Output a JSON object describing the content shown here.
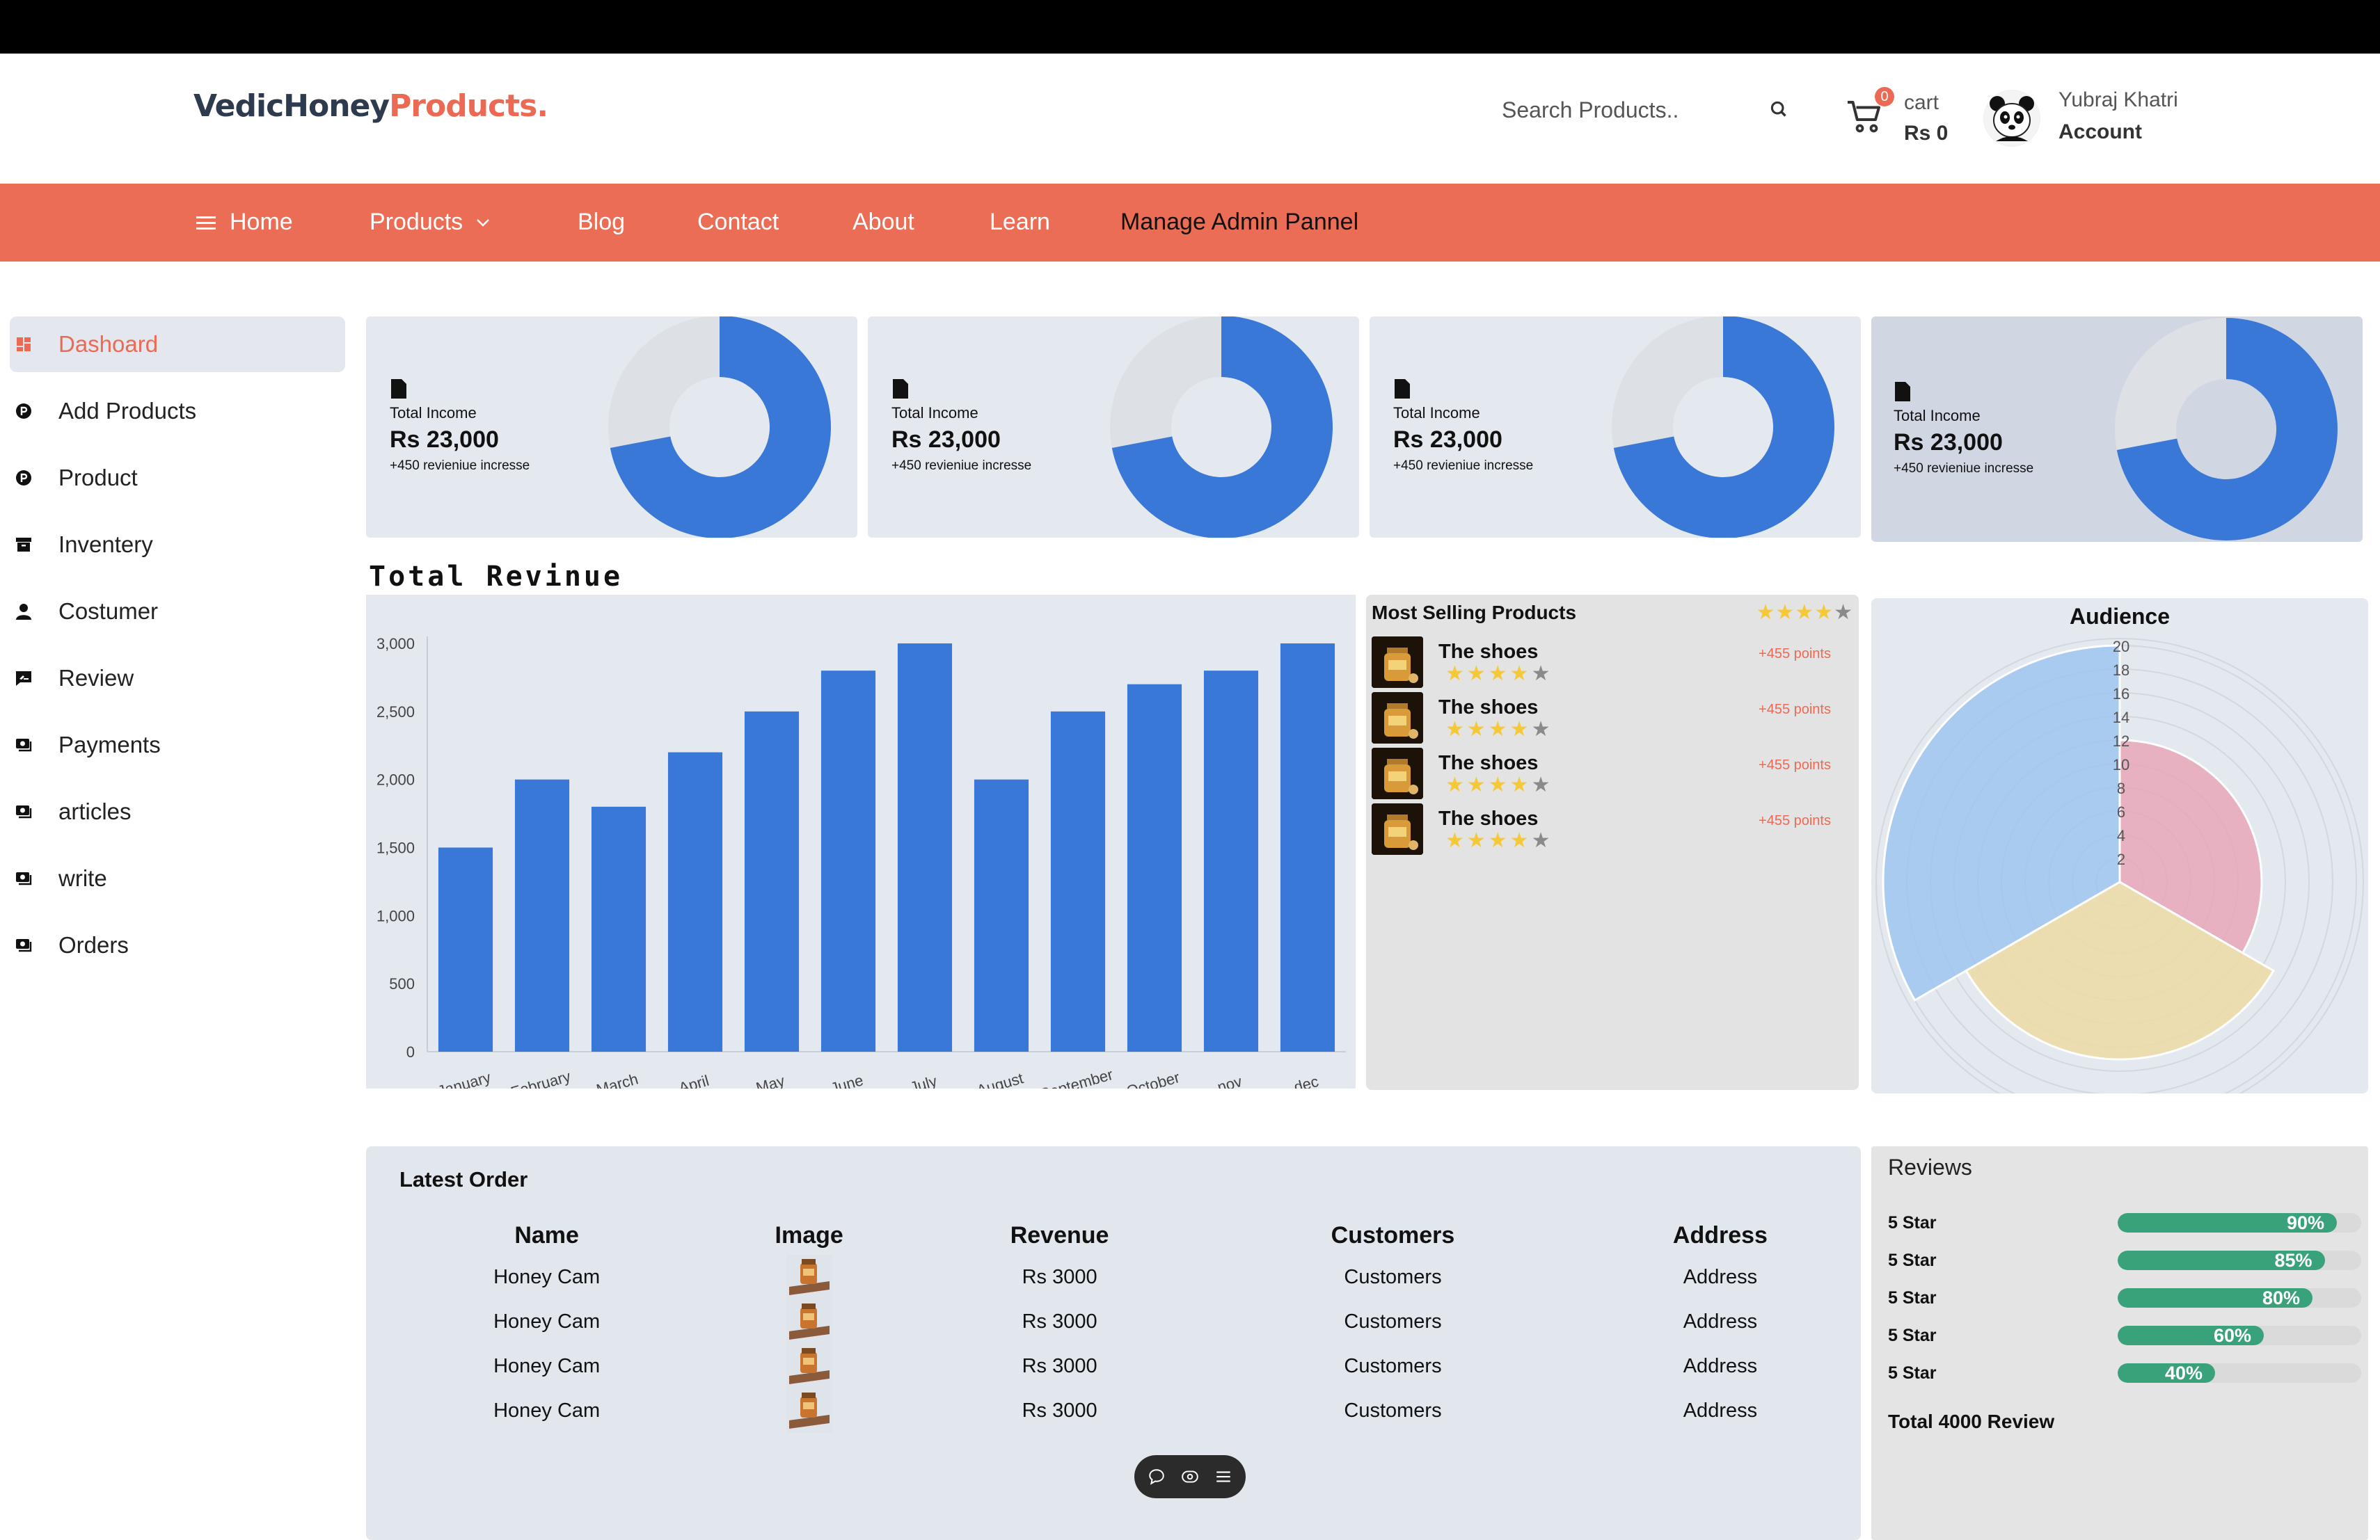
{
  "brand": {
    "part1": "VedicHoney",
    "part2": "Products.",
    "color1": "#2e3a4e",
    "color2": "#ec6a54"
  },
  "search": {
    "placeholder": "Search Products.."
  },
  "cart": {
    "badge": "0",
    "label": "cart",
    "amount": "Rs 0"
  },
  "account": {
    "name": "Yubraj Khatri",
    "label": "Account"
  },
  "nav": {
    "bg": "#ec6d55",
    "items": [
      "Home",
      "Products",
      "Blog",
      "Contact",
      "About",
      "Learn",
      "Manage Admin Pannel"
    ]
  },
  "sidebar": {
    "items": [
      {
        "label": "Dashoard",
        "icon": "dashboard-icon",
        "active": true
      },
      {
        "label": "Add Products",
        "icon": "product-hunt-icon"
      },
      {
        "label": "Product",
        "icon": "product-hunt-icon"
      },
      {
        "label": "Inventery",
        "icon": "archive-box-icon"
      },
      {
        "label": "Costumer",
        "icon": "user-icon"
      },
      {
        "label": "Review",
        "icon": "review-icon"
      },
      {
        "label": "Payments",
        "icon": "money-bill-icon"
      },
      {
        "label": "articles",
        "icon": "money-bill-icon"
      },
      {
        "label": "write",
        "icon": "money-bill-icon"
      },
      {
        "label": "Orders",
        "icon": "money-bill-icon"
      }
    ]
  },
  "cards": [
    {
      "title": "Total Income",
      "value": "Rs 23,000",
      "increase": "+450 revieniue incresse",
      "percent": 0.72
    },
    {
      "title": "Total Income",
      "value": "Rs 23,000",
      "increase": "+450 revieniue incresse",
      "percent": 0.72
    },
    {
      "title": "Total Income",
      "value": "Rs 23,000",
      "increase": "+450 revieniue incresse",
      "percent": 0.72
    },
    {
      "title": "Total Income",
      "value": "Rs 23,000",
      "increase": "+450 revieniue incresse",
      "percent": 0.72
    }
  ],
  "revenue": {
    "title": "Total Revinue"
  },
  "chart_data": [
    {
      "type": "bar",
      "title": "Total Revinue",
      "categories": [
        "January",
        "February",
        "March",
        "April",
        "May",
        "June",
        "July",
        "August",
        "September",
        "October",
        "nov",
        "dec"
      ],
      "values": [
        1500,
        2000,
        1800,
        2200,
        2500,
        2800,
        3000,
        2000,
        2500,
        2700,
        2800,
        3000
      ],
      "ylim": [
        0,
        3000
      ],
      "yticks": [
        0,
        500,
        1000,
        1500,
        2000,
        2500,
        3000
      ],
      "ytick_labels": [
        "0",
        "500",
        "1,000",
        "1,500",
        "2,000",
        "2,500",
        "3,000"
      ],
      "color": "#3a78d8",
      "grid": false
    },
    {
      "type": "polar-area",
      "title": "Audience",
      "categories": [
        "",
        "",
        ""
      ],
      "values": [
        12,
        15,
        20
      ],
      "colors": [
        "#e8a7b8",
        "#eddaa6",
        "#9fc5ee"
      ],
      "rlim": [
        0,
        20
      ],
      "rticks": [
        "2",
        "4",
        "6",
        "8",
        "10",
        "12",
        "14",
        "16",
        "18",
        "20"
      ]
    },
    {
      "type": "donut",
      "values": [
        0.72,
        0.28
      ],
      "colors": [
        "#3a78d8",
        "#dde1e6"
      ]
    }
  ],
  "selling": {
    "title": "Most Selling Products",
    "rating": 4,
    "items": [
      {
        "name": "The shoes",
        "points": "+455 points",
        "rating": 4
      },
      {
        "name": "The shoes",
        "points": "+455 points",
        "rating": 4
      },
      {
        "name": "The shoes",
        "points": "+455 points",
        "rating": 4
      },
      {
        "name": "The shoes",
        "points": "+455 points",
        "rating": 4
      }
    ]
  },
  "audience": {
    "title": "Audience"
  },
  "orders": {
    "title": "Latest Order",
    "columns": [
      "Name",
      "Image",
      "Revenue",
      "Customers",
      "Address"
    ],
    "rows": [
      {
        "name": "Honey Cam",
        "revenue": "Rs 3000",
        "customer": "Customers",
        "address": "Address"
      },
      {
        "name": "Honey Cam",
        "revenue": "Rs 3000",
        "customer": "Customers",
        "address": "Address"
      },
      {
        "name": "Honey Cam",
        "revenue": "Rs 3000",
        "customer": "Customers",
        "address": "Address"
      },
      {
        "name": "Honey Cam",
        "revenue": "Rs 3000",
        "customer": "Customers",
        "address": "Address"
      }
    ]
  },
  "reviews": {
    "title": "Reviews",
    "rows": [
      {
        "label": "5 Star",
        "percent": 90,
        "text": "90%"
      },
      {
        "label": "5 Star",
        "percent": 85,
        "text": "85%"
      },
      {
        "label": "5 Star",
        "percent": 80,
        "text": "80%"
      },
      {
        "label": "5 Star",
        "percent": 60,
        "text": "60%"
      },
      {
        "label": "5 Star",
        "percent": 40,
        "text": "40%"
      }
    ],
    "total": "Total 4000 Review"
  }
}
